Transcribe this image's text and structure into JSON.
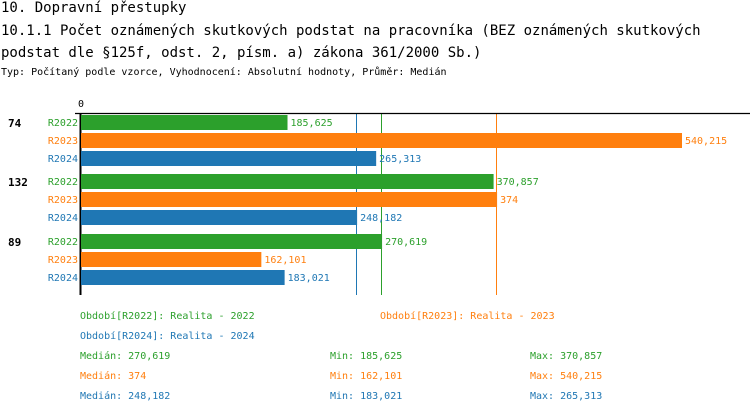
{
  "header": {
    "title": "10. Dopravní přestupky",
    "subtitle": "10.1.1 Počet oznámených skutkových podstat na pracovníka (BEZ oznámených skutkových podstat dle §125f, odst. 2, písm. a) zákona 361/2000 Sb.)",
    "type_line": "Typ: Počítaný podle vzorce, Vyhodnocení: Absolutní hodnoty, Průměr: Medián"
  },
  "chart_data": {
    "type": "bar",
    "orientation": "horizontal",
    "title": "",
    "xlabel": "",
    "ylabel": "",
    "x_tick_label": "0",
    "xlim": [
      0,
      540.215
    ],
    "categories": [
      "74",
      "132",
      "89"
    ],
    "series": [
      {
        "name": "R2022",
        "color": "#2ca02c",
        "values": [
          185.625,
          370.857,
          270.619
        ],
        "labels": [
          "185,625",
          "370,857",
          "270,619"
        ]
      },
      {
        "name": "R2023",
        "color": "#ff7f0e",
        "values": [
          540.215,
          374,
          162.101
        ],
        "labels": [
          "540,215",
          "374",
          "162,101"
        ]
      },
      {
        "name": "R2024",
        "color": "#1f77b4",
        "values": [
          265.313,
          248.182,
          183.021
        ],
        "labels": [
          "265,313",
          "248,182",
          "183,021"
        ]
      }
    ],
    "median_lines": [
      {
        "series": "R2022",
        "value": 270.619
      },
      {
        "series": "R2023",
        "value": 374
      },
      {
        "series": "R2024",
        "value": 248.182
      }
    ]
  },
  "legend": {
    "periods": [
      "Období[R2022]: Realita - 2022",
      "Období[R2023]: Realita - 2023",
      "Období[R2024]: Realita - 2024"
    ],
    "stats": [
      {
        "median": "Medián: 270,619",
        "min": "Min: 185,625",
        "max": "Max: 370,857",
        "color": "#2ca02c"
      },
      {
        "median": "Medián: 374",
        "min": "Min: 162,101",
        "max": "Max: 540,215",
        "color": "#ff7f0e"
      },
      {
        "median": "Medián: 248,182",
        "min": "Min: 183,021",
        "max": "Max: 265,313",
        "color": "#1f77b4"
      }
    ]
  }
}
